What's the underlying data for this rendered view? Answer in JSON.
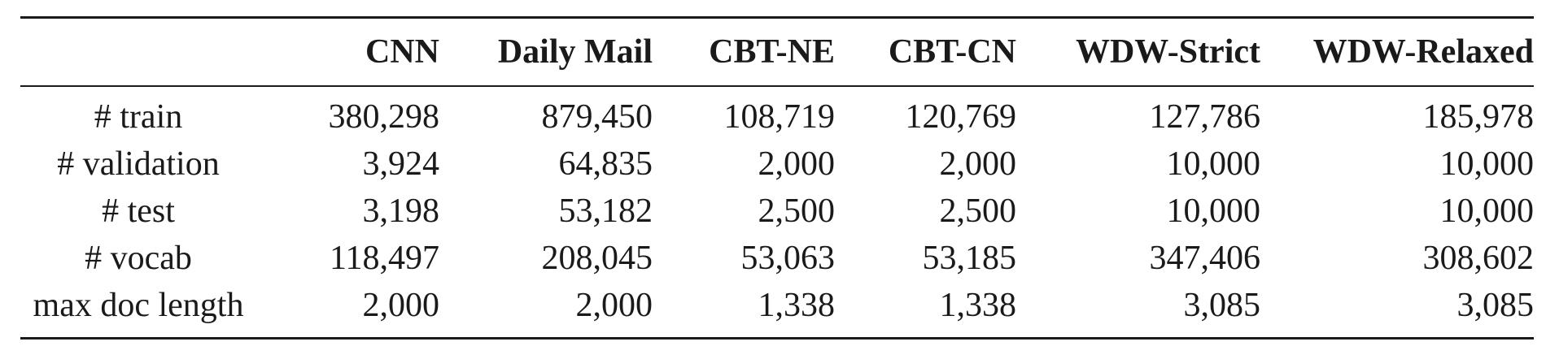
{
  "table": {
    "columns": [
      "",
      "CNN",
      "Daily Mail",
      "CBT-NE",
      "CBT-CN",
      "WDW-Strict",
      "WDW-Relaxed"
    ],
    "rows": [
      {
        "label": "# train",
        "values": [
          "380,298",
          "879,450",
          "108,719",
          "120,769",
          "127,786",
          "185,978"
        ]
      },
      {
        "label": "# validation",
        "values": [
          "3,924",
          "64,835",
          "2,000",
          "2,000",
          "10,000",
          "10,000"
        ]
      },
      {
        "label": "# test",
        "values": [
          "3,198",
          "53,182",
          "2,500",
          "2,500",
          "10,000",
          "10,000"
        ]
      },
      {
        "label": "# vocab",
        "values": [
          "118,497",
          "208,045",
          "53,063",
          "53,185",
          "347,406",
          "308,602"
        ]
      },
      {
        "label": "max doc length",
        "values": [
          "2,000",
          "2,000",
          "1,338",
          "1,338",
          "3,085",
          "3,085"
        ]
      }
    ]
  },
  "chart_data": {
    "type": "table",
    "columns": [
      "",
      "CNN",
      "Daily Mail",
      "CBT-NE",
      "CBT-CN",
      "WDW-Strict",
      "WDW-Relaxed"
    ],
    "rows": [
      [
        "# train",
        380298,
        879450,
        108719,
        120769,
        127786,
        185978
      ],
      [
        "# validation",
        3924,
        64835,
        2000,
        2000,
        10000,
        10000
      ],
      [
        "# test",
        3198,
        53182,
        2500,
        2500,
        10000,
        10000
      ],
      [
        "# vocab",
        118497,
        208045,
        53063,
        53185,
        347406,
        308602
      ],
      [
        "max doc length",
        2000,
        2000,
        1338,
        1338,
        3085,
        3085
      ]
    ]
  }
}
